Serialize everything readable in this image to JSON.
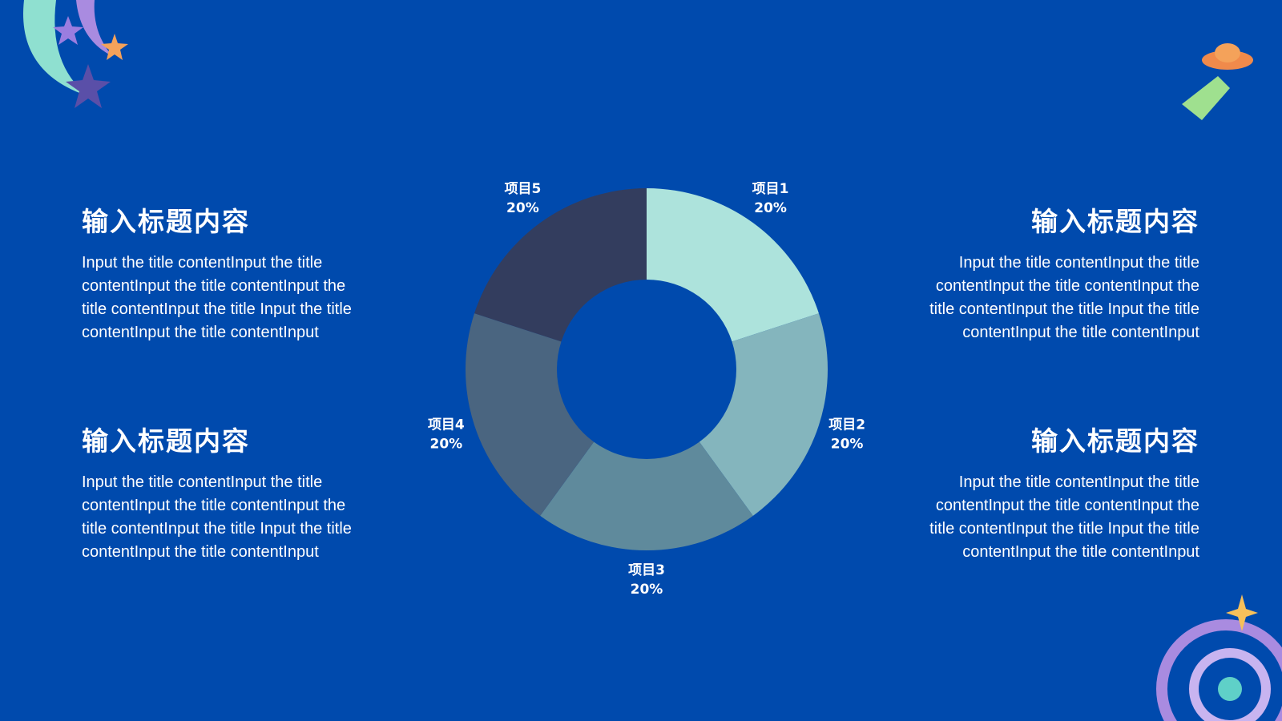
{
  "chart_data": {
    "type": "pie",
    "donut": true,
    "categories": [
      "项目1",
      "项目2",
      "项目3",
      "项目4",
      "项目5"
    ],
    "values": [
      20,
      20,
      20,
      20,
      20
    ],
    "value_labels": [
      "20%",
      "20%",
      "20%",
      "20%",
      "20%"
    ],
    "colors": [
      "#ade3dc",
      "#84b5bd",
      "#5f8a9c",
      "#4a6580",
      "#333d5e"
    ]
  },
  "text_blocks": [
    {
      "title": "输入标题内容",
      "body": "Input the title contentInput the title contentInput the title contentInput the title contentInput the title Input the title contentInput the title contentInput"
    },
    {
      "title": "输入标题内容",
      "body": "Input the title contentInput the title contentInput the title contentInput the title contentInput the title Input the title contentInput the title contentInput"
    },
    {
      "title": "输入标题内容",
      "body": "Input the title contentInput the title contentInput the title contentInput the title contentInput the title Input the title contentInput the title contentInput"
    },
    {
      "title": "输入标题内容",
      "body": "Input the title contentInput the title contentInput the title contentInput the title contentInput the title Input the title contentInput the title contentInput"
    }
  ]
}
